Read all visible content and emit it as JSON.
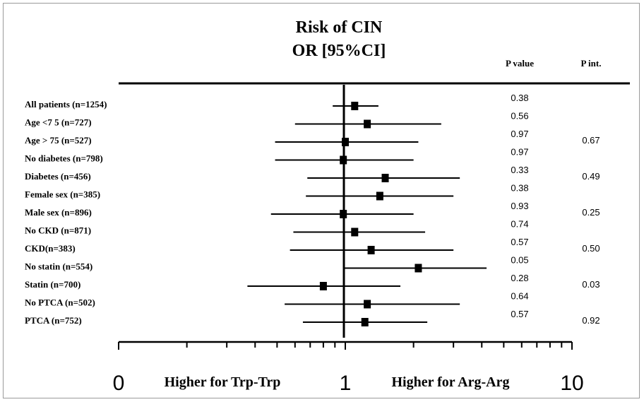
{
  "chart_data": {
    "type": "forest",
    "title": "Risk of CIN",
    "subtitle": "OR [95%CI]",
    "x_scale": "log",
    "xlim": [
      0.1,
      10
    ],
    "x_tick_labels": [
      "0",
      "1",
      "10"
    ],
    "left_label": "Higher for  Trp-Trp",
    "right_label": "Higher for Arg-Arg",
    "pvalue_header": "P value",
    "pint_header": "P int.",
    "rows": [
      {
        "label": "All patients (n=1254)",
        "or": 1.1,
        "lo": 0.88,
        "hi": 1.4,
        "p": "0.38"
      },
      {
        "label": "Age <7 5 (n=727)",
        "or": 1.25,
        "lo": 0.6,
        "hi": 2.65,
        "p": "0.56"
      },
      {
        "label": "Age > 75 (n=527)",
        "or": 1.0,
        "lo": 0.49,
        "hi": 2.1,
        "p": "0.97"
      },
      {
        "label": "No diabetes (n=798)",
        "or": 0.98,
        "lo": 0.49,
        "hi": 2.0,
        "p": "0.97"
      },
      {
        "label": "Diabetes  (n=456)",
        "or": 1.5,
        "lo": 0.68,
        "hi": 3.2,
        "p": "0.33"
      },
      {
        "label": "Female sex (n=385)",
        "or": 1.42,
        "lo": 0.67,
        "hi": 3.0,
        "p": "0.38"
      },
      {
        "label": "Male sex (n=896)",
        "or": 0.98,
        "lo": 0.47,
        "hi": 2.0,
        "p": "0.93"
      },
      {
        "label": "No CKD  (n=871)",
        "or": 1.1,
        "lo": 0.59,
        "hi": 2.25,
        "p": "0.74"
      },
      {
        "label": "CKD(n=383)",
        "or": 1.3,
        "lo": 0.57,
        "hi": 3.0,
        "p": "0.57"
      },
      {
        "label": "No statin (n=554)",
        "or": 2.1,
        "lo": 0.99,
        "hi": 4.2,
        "p": "0.05"
      },
      {
        "label": "Statin (n=700)",
        "or": 0.8,
        "lo": 0.37,
        "hi": 1.75,
        "p": "0.28"
      },
      {
        "label": "No PTCA  (n=502)",
        "or": 1.25,
        "lo": 0.54,
        "hi": 3.2,
        "p": "0.64"
      },
      {
        "label": "PTCA  (n=752)",
        "or": 1.22,
        "lo": 0.65,
        "hi": 2.3,
        "p": "0.57"
      }
    ],
    "interaction_p": [
      "0.67",
      "0.49",
      "0.25",
      "0.50",
      "0.03",
      "0.92"
    ]
  }
}
